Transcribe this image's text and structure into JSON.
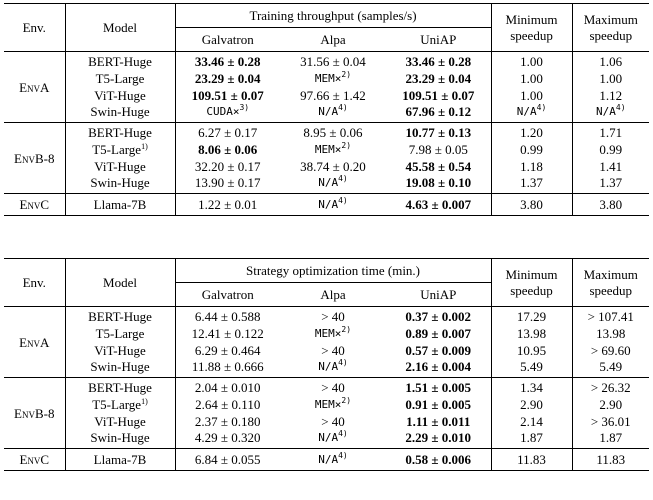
{
  "table1": {
    "headers": {
      "env": "Env.",
      "model": "Model",
      "group": "Training throughput (samples/s)",
      "galvatron": "Galvatron",
      "alpa": "Alpa",
      "uniap": "UniAP",
      "min": "Minimum\nspeedup",
      "max": "Maximum\nspeedup"
    },
    "groups": [
      {
        "env": "EnvA",
        "rows": [
          {
            "model": "BERT-Huge",
            "galvatron": "33.46 ± 0.28",
            "alpa": "31.56 ± 0.04",
            "uniap": "33.46 ± 0.28",
            "min": "1.00",
            "max": "1.06",
            "bold": [
              "galvatron",
              "uniap"
            ]
          },
          {
            "model": "T5-Large",
            "galvatron": "23.29 ± 0.04",
            "alpa": "MEM×",
            "alpa_sup": "2)",
            "uniap": "23.29 ± 0.04",
            "min": "1.00",
            "max": "1.00",
            "bold": [
              "galvatron",
              "uniap"
            ]
          },
          {
            "model": "ViT-Huge",
            "galvatron": "109.51 ± 0.07",
            "alpa": "97.66 ± 1.42",
            "uniap": "109.51 ± 0.07",
            "min": "1.00",
            "max": "1.12",
            "bold": [
              "galvatron",
              "uniap"
            ]
          },
          {
            "model": "Swin-Huge",
            "galvatron": "CUDA×",
            "galvatron_sup": "3)",
            "alpa": "N/A",
            "alpa_sup": "4)",
            "uniap": "67.96 ± 0.12",
            "min": "N/A",
            "min_sup": "4)",
            "max": "N/A",
            "max_sup": "4)",
            "bold": [
              "uniap"
            ]
          }
        ]
      },
      {
        "env": "EnvB-8",
        "rows": [
          {
            "model": "BERT-Huge",
            "galvatron": "6.27 ± 0.17",
            "alpa": "8.95 ± 0.06",
            "uniap": "10.77 ± 0.13",
            "min": "1.20",
            "max": "1.71",
            "bold": [
              "uniap"
            ]
          },
          {
            "model": "T5-Large",
            "model_sup": "1)",
            "galvatron": "8.06 ± 0.06",
            "alpa": "MEM×",
            "alpa_sup": "2)",
            "uniap": "7.98 ± 0.05",
            "min": "0.99",
            "max": "0.99",
            "bold": [
              "galvatron"
            ]
          },
          {
            "model": "ViT-Huge",
            "galvatron": "32.20 ± 0.17",
            "alpa": "38.74 ± 0.20",
            "uniap": "45.58 ± 0.54",
            "min": "1.18",
            "max": "1.41",
            "bold": [
              "uniap"
            ]
          },
          {
            "model": "Swin-Huge",
            "galvatron": "13.90 ± 0.17",
            "alpa": "N/A",
            "alpa_sup": "4)",
            "uniap": "19.08 ± 0.10",
            "min": "1.37",
            "max": "1.37",
            "bold": [
              "uniap"
            ]
          }
        ]
      },
      {
        "env": "EnvC",
        "rows": [
          {
            "model": "Llama-7B",
            "galvatron": "1.22 ± 0.01",
            "alpa": "N/A",
            "alpa_sup": "4)",
            "uniap": "4.63 ± 0.007",
            "min": "3.80",
            "max": "3.80",
            "bold": [
              "uniap"
            ]
          }
        ]
      }
    ]
  },
  "table2": {
    "headers": {
      "env": "Env.",
      "model": "Model",
      "group": "Strategy optimization time (min.)",
      "galvatron": "Galvatron",
      "alpa": "Alpa",
      "uniap": "UniAP",
      "min": "Minimum\nspeedup",
      "max": "Maximum\nspeedup"
    },
    "groups": [
      {
        "env": "EnvA",
        "rows": [
          {
            "model": "BERT-Huge",
            "galvatron": "6.44 ± 0.588",
            "alpa": "> 40",
            "uniap": "0.37 ± 0.002",
            "min": "17.29",
            "max": "> 107.41",
            "bold": [
              "uniap"
            ]
          },
          {
            "model": "T5-Large",
            "galvatron": "12.41 ± 0.122",
            "alpa": "MEM×",
            "alpa_sup": "2)",
            "uniap": "0.89 ± 0.007",
            "min": "13.98",
            "max": "13.98",
            "bold": [
              "uniap"
            ]
          },
          {
            "model": "ViT-Huge",
            "galvatron": "6.29 ± 0.464",
            "alpa": "> 40",
            "uniap": "0.57 ± 0.009",
            "min": "10.95",
            "max": "> 69.60",
            "bold": [
              "uniap"
            ]
          },
          {
            "model": "Swin-Huge",
            "galvatron": "11.88 ± 0.666",
            "alpa": "N/A",
            "alpa_sup": "4)",
            "uniap": "2.16 ± 0.004",
            "min": "5.49",
            "max": "5.49",
            "bold": [
              "uniap"
            ]
          }
        ]
      },
      {
        "env": "EnvB-8",
        "rows": [
          {
            "model": "BERT-Huge",
            "galvatron": "2.04 ± 0.010",
            "alpa": "> 40",
            "uniap": "1.51 ± 0.005",
            "min": "1.34",
            "max": "> 26.32",
            "bold": [
              "uniap"
            ]
          },
          {
            "model": "T5-Large",
            "model_sup": "1)",
            "galvatron": "2.64 ± 0.110",
            "alpa": "MEM×",
            "alpa_sup": "2)",
            "uniap": "0.91 ± 0.005",
            "min": "2.90",
            "max": "2.90",
            "bold": [
              "uniap"
            ]
          },
          {
            "model": "ViT-Huge",
            "galvatron": "2.37 ± 0.180",
            "alpa": "> 40",
            "uniap": "1.11 ± 0.011",
            "min": "2.14",
            "max": "> 36.01",
            "bold": [
              "uniap"
            ]
          },
          {
            "model": "Swin-Huge",
            "galvatron": "4.29 ± 0.320",
            "alpa": "N/A",
            "alpa_sup": "4)",
            "uniap": "2.29 ± 0.010",
            "min": "1.87",
            "max": "1.87",
            "bold": [
              "uniap"
            ]
          }
        ]
      },
      {
        "env": "EnvC",
        "rows": [
          {
            "model": "Llama-7B",
            "galvatron": "6.84 ± 0.055",
            "alpa": "N/A",
            "alpa_sup": "4)",
            "uniap": "0.58 ± 0.006",
            "min": "11.83",
            "max": "11.83",
            "bold": [
              "uniap"
            ]
          }
        ]
      }
    ]
  }
}
